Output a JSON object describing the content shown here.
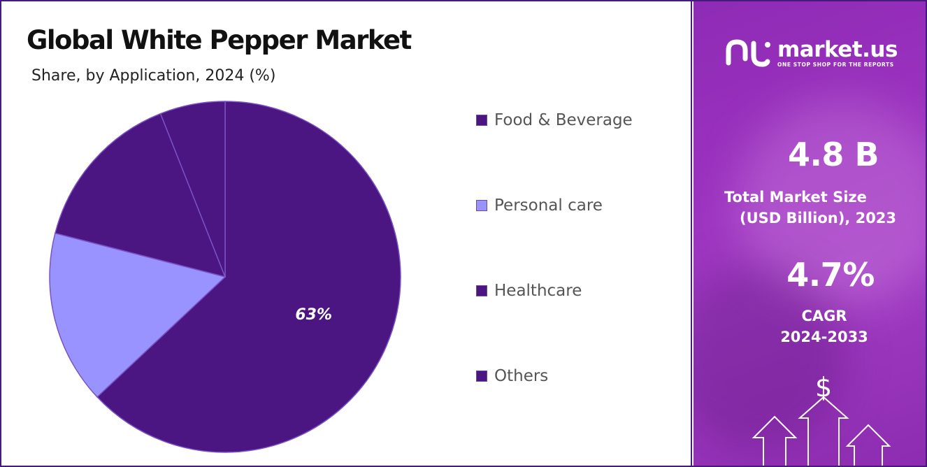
{
  "chart_data": {
    "type": "pie",
    "title": "Global White Pepper Market",
    "subtitle": "Share, by Application, 2024 (%)",
    "slices": [
      {
        "name": "Food & Beverage",
        "value": 63,
        "label": "63%",
        "color": "#4b1582"
      },
      {
        "name": "Personal care",
        "value": 16,
        "label": "",
        "color": "#9893ff"
      },
      {
        "name": "Healthcare",
        "value": 15,
        "label": "",
        "color": "#4b1582"
      },
      {
        "name": "Others",
        "value": 6,
        "label": "",
        "color": "#4b1582"
      }
    ],
    "legend": [
      "Food & Beverage",
      "Personal care",
      "Healthcare",
      "Others"
    ],
    "legend_position": "right"
  },
  "brand": {
    "name": "market.us",
    "tagline": "ONE STOP SHOP FOR THE REPORTS"
  },
  "stats": {
    "market_size_value": "4.8 B",
    "market_size_label_1": "Total Market Size",
    "market_size_label_2": "(USD Billion), 2023",
    "cagr_value": "4.7%",
    "cagr_label_1": "CAGR",
    "cagr_label_2": "2024-2033",
    "currency_symbol": "$"
  },
  "colors": {
    "accent": "#4b1582",
    "secondary": "#9893ff",
    "panel": "#9b32bf"
  }
}
